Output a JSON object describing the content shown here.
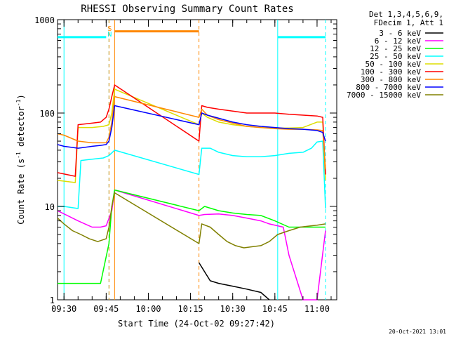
{
  "chart_data": {
    "type": "line",
    "title": "RHESSI Observing Summary Count Rates",
    "xlabel": "Start Time (24-Oct-02 09:27:42)",
    "ylabel_main": "Count Rate (s",
    "ylabel_sup1": "-1",
    "ylabel_mid": " detector",
    "ylabel_sup2": "-1",
    "ylabel_end": ")",
    "y_scale": "log",
    "ylim": [
      1,
      1000
    ],
    "xlim": [
      "09:27:42",
      "11:07:00"
    ],
    "y_ticks": [
      {
        "value": 1,
        "label": "1"
      },
      {
        "value": 10,
        "label": "10"
      },
      {
        "value": 100,
        "label": "100"
      },
      {
        "value": 1000,
        "label": "1000"
      }
    ],
    "x_ticks": [
      {
        "value": "09:30",
        "label": "09:30"
      },
      {
        "value": "09:45",
        "label": "09:45"
      },
      {
        "value": "10:00",
        "label": "10:00"
      },
      {
        "value": "10:15",
        "label": "10:15"
      },
      {
        "value": "10:30",
        "label": "10:30"
      },
      {
        "value": "10:45",
        "label": "10:45"
      },
      {
        "value": "11:00",
        "label": "11:00"
      }
    ],
    "legend_header": [
      "Det 1,3,4,5,6,9,",
      "FDecim 1, Att 1"
    ],
    "legend_position": "right",
    "series": [
      {
        "name": "3 - 6 keV",
        "color": "#000000",
        "x": [
          "10:18",
          "10:20",
          "10:22",
          "10:25",
          "10:30",
          "10:35",
          "10:40",
          "10:43"
        ],
        "y": [
          2.5,
          2.0,
          1.6,
          1.5,
          1.4,
          1.3,
          1.2,
          1.0
        ]
      },
      {
        "name": "6 - 12 keV",
        "color": "#ff00ff",
        "x": [
          "09:27:42",
          "09:35",
          "09:40",
          "09:43",
          "09:45",
          "09:47",
          "09:48",
          "10:18",
          "10:20",
          "10:25",
          "10:30",
          "10:35",
          "10:40",
          "10:43",
          "10:48",
          "10:50",
          "10:55",
          "11:00",
          "11:03"
        ],
        "y": [
          9,
          7,
          6,
          6,
          6.2,
          9,
          15,
          8,
          8.2,
          8.3,
          8,
          7.5,
          7,
          6.5,
          6.0,
          3,
          1,
          1,
          5.5
        ]
      },
      {
        "name": "12 - 25 keV",
        "color": "#00ff00",
        "x": [
          "09:27:42",
          "09:33",
          "09:40",
          "09:43",
          "09:46",
          "09:47",
          "09:48",
          "10:18",
          "10:20",
          "10:25",
          "10:30",
          "10:35",
          "10:40",
          "10:45",
          "10:50",
          "10:55",
          "11:00",
          "11:03"
        ],
        "y": [
          1.5,
          1.5,
          1.5,
          1.5,
          4,
          10,
          15,
          9,
          10,
          9,
          8.5,
          8.2,
          8.0,
          7,
          6,
          6,
          6,
          6
        ]
      },
      {
        "name": "25 - 50 keV",
        "color": "#00ffff",
        "x": [
          "09:27:42",
          "09:30",
          "09:35",
          "09:36",
          "09:40",
          "09:44",
          "09:46",
          "09:48",
          "10:18",
          "10:19",
          "10:22",
          "10:25",
          "10:30",
          "10:35",
          "10:40",
          "10:45",
          "10:50",
          "10:55",
          "10:58",
          "11:00",
          "11:02",
          "11:03"
        ],
        "y": [
          10,
          10,
          9.5,
          31,
          32,
          33,
          35,
          40,
          22,
          42,
          42,
          38,
          35,
          34,
          34,
          35,
          37,
          38,
          42,
          49,
          50,
          9.5
        ]
      },
      {
        "name": "50 - 100 keV",
        "color": "#dddd00",
        "x": [
          "09:27:42",
          "09:34",
          "09:35",
          "09:40",
          "09:44",
          "09:46",
          "09:47",
          "09:48",
          "10:18",
          "10:19",
          "10:21",
          "10:25",
          "10:30",
          "10:35",
          "10:40",
          "10:45",
          "10:50",
          "10:55",
          "11:00",
          "11:02",
          "11:03"
        ],
        "y": [
          19,
          18,
          70,
          70,
          72,
          75,
          100,
          180,
          75,
          100,
          90,
          80,
          75,
          72,
          70,
          69,
          69,
          70,
          80,
          80,
          19
        ]
      },
      {
        "name": "100 - 300 keV",
        "color": "#ff0000",
        "x": [
          "09:27:42",
          "09:34",
          "09:35",
          "09:40",
          "09:43",
          "09:45",
          "09:46",
          "09:47",
          "09:48",
          "10:18",
          "10:19",
          "10:21",
          "10:25",
          "10:30",
          "10:35",
          "10:40",
          "10:45",
          "10:50",
          "10:55",
          "11:00",
          "11:02",
          "11:03"
        ],
        "y": [
          23,
          21,
          75,
          78,
          80,
          90,
          110,
          150,
          200,
          50,
          120,
          115,
          110,
          105,
          100,
          100,
          100,
          97,
          95,
          93,
          90,
          22
        ]
      },
      {
        "name": "300 - 800 keV",
        "color": "#ff8800",
        "x": [
          "09:27:42",
          "09:30",
          "09:35",
          "09:40",
          "09:43",
          "09:45",
          "09:46",
          "09:47",
          "09:48",
          "10:18",
          "10:19",
          "10:21",
          "10:25",
          "10:30",
          "10:35",
          "10:40",
          "10:45",
          "10:50",
          "10:55",
          "11:00",
          "11:02",
          "11:03"
        ],
        "y": [
          60,
          58,
          50,
          48,
          48,
          48,
          55,
          80,
          150,
          90,
          110,
          95,
          85,
          78,
          72,
          70,
          68,
          67,
          67,
          66,
          65,
          25
        ]
      },
      {
        "name": "800 - 7000 keV",
        "color": "#0000ff",
        "x": [
          "09:27:42",
          "09:30",
          "09:35",
          "09:40",
          "09:43",
          "09:45",
          "09:46",
          "09:47",
          "09:48",
          "10:18",
          "10:19",
          "10:21",
          "10:25",
          "10:30",
          "10:35",
          "10:40",
          "10:45",
          "10:50",
          "10:55",
          "11:00",
          "11:02",
          "11:03"
        ],
        "y": [
          46,
          44,
          42,
          44,
          45,
          46,
          50,
          70,
          120,
          75,
          100,
          95,
          88,
          80,
          75,
          72,
          70,
          68,
          67,
          65,
          62,
          50
        ]
      },
      {
        "name": "7000 - 15000 keV",
        "color": "#808000",
        "x": [
          "09:27:42",
          "09:30",
          "09:33",
          "09:36",
          "09:39",
          "09:42",
          "09:45",
          "09:46",
          "09:47",
          "09:48",
          "10:18",
          "10:19",
          "10:22",
          "10:25",
          "10:28",
          "10:31",
          "10:34",
          "10:37",
          "10:40",
          "10:43",
          "10:46",
          "10:50",
          "10:54",
          "10:58",
          "11:00",
          "11:03"
        ],
        "y": [
          7.5,
          6.5,
          5.5,
          5.0,
          4.5,
          4.2,
          4.5,
          6,
          10,
          14,
          4,
          6.5,
          6,
          5,
          4.2,
          3.8,
          3.6,
          3.7,
          3.8,
          4.2,
          5,
          5.5,
          6.0,
          6.2,
          6.3,
          6.5
        ]
      }
    ],
    "attenuator_state": {
      "color": "#ff8800",
      "level": 750,
      "start": "09:48",
      "end": "10:18",
      "markers": [
        {
          "time": "09:46",
          "label": "S",
          "style": "dashed"
        },
        {
          "time": "09:48",
          "label": "",
          "style": "solid"
        },
        {
          "time": "10:18",
          "label": "",
          "style": "dashed"
        }
      ]
    },
    "night_segments": {
      "color": "#00ffff",
      "level": 650,
      "segments": [
        [
          "09:27:42",
          "09:45"
        ],
        [
          "10:46",
          "11:03"
        ]
      ],
      "markers": [
        {
          "time": "09:30",
          "label": "",
          "style": "solid"
        },
        {
          "time": "09:46",
          "label": "N",
          "style": "dashed"
        },
        {
          "time": "10:46",
          "label": "",
          "style": "solid"
        },
        {
          "time": "11:03",
          "label": "",
          "style": "dashed"
        }
      ]
    }
  },
  "footer_timestamp": "20-Oct-2021 13:01"
}
